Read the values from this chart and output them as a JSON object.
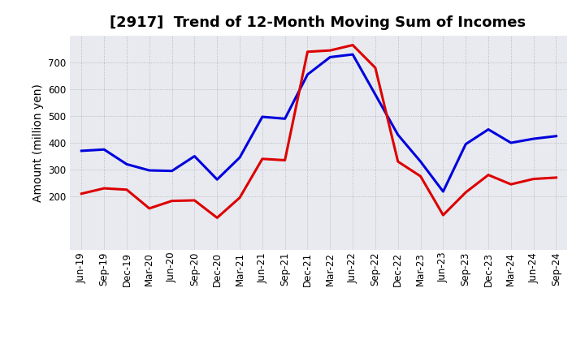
{
  "title": "[2917]  Trend of 12-Month Moving Sum of Incomes",
  "ylabel": "Amount (million yen)",
  "labels": [
    "Jun-19",
    "Sep-19",
    "Dec-19",
    "Mar-20",
    "Jun-20",
    "Sep-20",
    "Dec-20",
    "Mar-21",
    "Jun-21",
    "Sep-21",
    "Dec-21",
    "Mar-22",
    "Jun-22",
    "Sep-22",
    "Dec-22",
    "Mar-23",
    "Jun-23",
    "Sep-23",
    "Dec-23",
    "Mar-24",
    "Jun-24",
    "Sep-24"
  ],
  "ordinary_income": [
    370,
    375,
    320,
    297,
    295,
    350,
    263,
    345,
    497,
    490,
    655,
    720,
    730,
    580,
    430,
    330,
    218,
    395,
    450,
    400,
    415,
    425
  ],
  "net_income": [
    210,
    230,
    225,
    155,
    183,
    185,
    120,
    195,
    340,
    335,
    740,
    745,
    765,
    680,
    330,
    275,
    130,
    215,
    280,
    245,
    265,
    270
  ],
  "ordinary_color": "#0000dd",
  "net_color": "#dd0000",
  "background_color": "#ffffff",
  "plot_bg_color": "#e8eaf0",
  "grid_color": "#aaaaaa",
  "ylim_min": 0,
  "ylim_max": 800,
  "yticks": [
    200,
    300,
    400,
    500,
    600,
    700
  ],
  "title_fontsize": 13,
  "axis_label_fontsize": 10,
  "tick_fontsize": 8.5,
  "legend_fontsize": 10,
  "line_width": 2.2
}
